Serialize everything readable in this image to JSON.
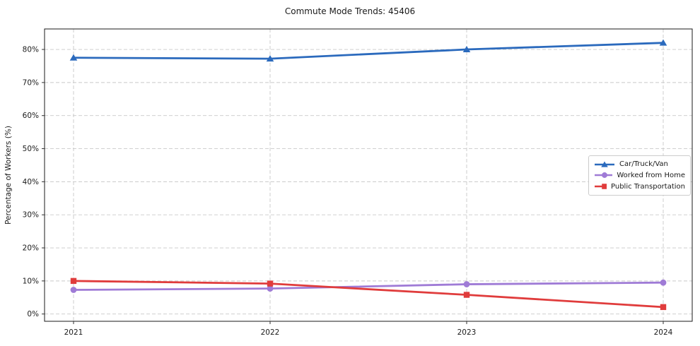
{
  "chart_data": {
    "type": "line",
    "title": "Commute Mode Trends: 45406",
    "xlabel": "",
    "ylabel": "Percentage of Workers (%)",
    "x": [
      2021,
      2022,
      2023,
      2024
    ],
    "series": [
      {
        "name": "Car/Truck/Van",
        "values": [
          77.5,
          77.2,
          80.0,
          82.0
        ],
        "color": "#2b6abd",
        "marker": "triangle"
      },
      {
        "name": "Worked from Home",
        "values": [
          7.3,
          7.7,
          9.0,
          9.5
        ],
        "color": "#9f7bd6",
        "marker": "circle"
      },
      {
        "name": "Public Transportation",
        "values": [
          10.0,
          9.2,
          5.8,
          2.1
        ],
        "color": "#e03c3c",
        "marker": "square"
      }
    ],
    "ylim": [
      -2.2,
      86.2
    ],
    "yticks": [
      0,
      10,
      20,
      30,
      40,
      50,
      60,
      70,
      80
    ],
    "ytick_labels": [
      "0%",
      "10%",
      "20%",
      "30%",
      "40%",
      "50%",
      "60%",
      "70%",
      "80%"
    ],
    "xtick_labels": [
      "2021",
      "2022",
      "2023",
      "2024"
    ],
    "grid": true,
    "legend_position": "center right"
  },
  "colors": {
    "background": "#ffffff",
    "grid": "#c9c9c9",
    "axis": "#1a1a1a",
    "text": "#1a1a1a",
    "legend_border": "#cccccc"
  }
}
